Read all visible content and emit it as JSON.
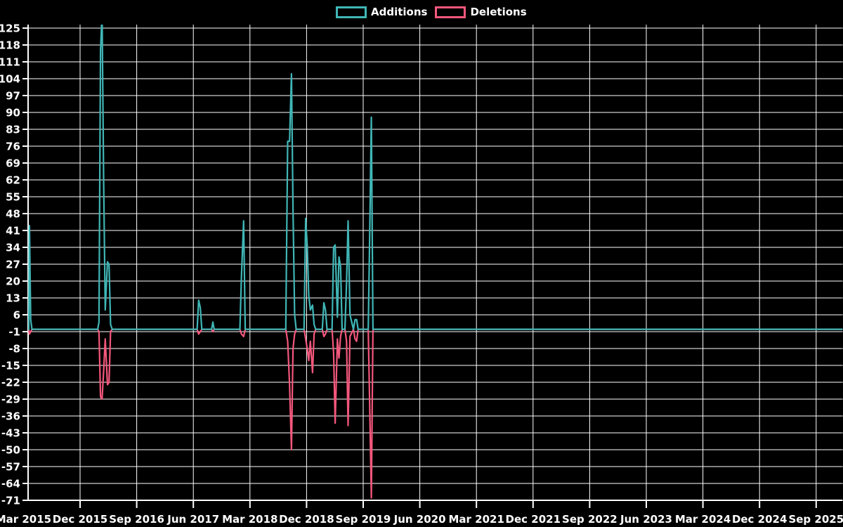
{
  "chart_data": {
    "type": "line",
    "title": "",
    "legend": [
      {
        "label": "Additions",
        "color": "#40b6b6"
      },
      {
        "label": "Deletions",
        "color": "#f4577c"
      }
    ],
    "colors": {
      "background": "#000000",
      "grid": "#ffffff",
      "text": "#ffffff",
      "additions": "#40b6b6",
      "deletions": "#f4577c"
    },
    "y_axis": {
      "min": -71,
      "max": 125,
      "step": 7,
      "ticks": [
        125,
        118,
        111,
        104,
        97,
        90,
        83,
        76,
        69,
        62,
        55,
        48,
        41,
        34,
        27,
        20,
        13,
        6,
        -1,
        -8,
        -15,
        -22,
        -29,
        -36,
        -43,
        -50,
        -57,
        -64,
        -71
      ]
    },
    "x_axis": {
      "labels": [
        "Mar 2015",
        "Dec 2015",
        "Sep 2016",
        "Jun 2017",
        "Mar 2018",
        "Dec 2018",
        "Sep 2019",
        "Jun 2020",
        "Mar 2021",
        "Dec 2021",
        "Sep 2022",
        "Jun 2023",
        "Mar 2024",
        "Dec 2024",
        "Sep 2025"
      ],
      "months_between_ticks": 9
    },
    "baseline": 0,
    "grid": true,
    "legend_position": "top-center",
    "series_events_comment": "t = months after Mar 2015; add = additions line value; del = deletions line value; flat at 0 between anchors",
    "series_events": [
      {
        "t": 0.74,
        "add": 0,
        "del": 0
      },
      {
        "t": 0.85,
        "add": 0,
        "del": 0
      },
      {
        "t": 0.95,
        "add": 43,
        "del": -2
      },
      {
        "t": 1.15,
        "add": 4,
        "del": -1
      },
      {
        "t": 1.35,
        "add": 0,
        "del": 0
      },
      {
        "t": 11.8,
        "add": 0,
        "del": 0
      },
      {
        "t": 12.0,
        "add": 3,
        "del": -1
      },
      {
        "t": 12.25,
        "add": 116,
        "del": -28
      },
      {
        "t": 12.5,
        "add": 131,
        "del": -29
      },
      {
        "t": 12.75,
        "add": 60,
        "del": -17
      },
      {
        "t": 13.0,
        "add": 8,
        "del": -4
      },
      {
        "t": 13.35,
        "add": 28,
        "del": -23
      },
      {
        "t": 13.6,
        "add": 27,
        "del": -22
      },
      {
        "t": 13.85,
        "add": 2,
        "del": -1
      },
      {
        "t": 14.1,
        "add": 0,
        "del": 0
      },
      {
        "t": 27.6,
        "add": 0,
        "del": 0
      },
      {
        "t": 27.85,
        "add": 12,
        "del": -2
      },
      {
        "t": 28.1,
        "add": 9,
        "del": -1
      },
      {
        "t": 28.35,
        "add": 0,
        "del": 0
      },
      {
        "t": 29.9,
        "add": 0,
        "del": 0
      },
      {
        "t": 30.1,
        "add": 3,
        "del": -1
      },
      {
        "t": 30.3,
        "add": 0,
        "del": 0
      },
      {
        "t": 34.4,
        "add": 0,
        "del": 0
      },
      {
        "t": 34.65,
        "add": 22,
        "del": -2
      },
      {
        "t": 35.0,
        "add": 45,
        "del": -3
      },
      {
        "t": 35.25,
        "add": 0,
        "del": 0
      },
      {
        "t": 41.7,
        "add": 0,
        "del": 0
      },
      {
        "t": 42.0,
        "add": 78,
        "del": -5
      },
      {
        "t": 42.3,
        "add": 78,
        "del": -23
      },
      {
        "t": 42.6,
        "add": 106,
        "del": -50
      },
      {
        "t": 42.85,
        "add": 50,
        "del": -8
      },
      {
        "t": 43.1,
        "add": 6,
        "del": -2
      },
      {
        "t": 43.35,
        "add": 0,
        "del": 0
      },
      {
        "t": 44.6,
        "add": 0,
        "del": 0
      },
      {
        "t": 44.85,
        "add": 46,
        "del": -4
      },
      {
        "t": 45.1,
        "add": 35,
        "del": -8
      },
      {
        "t": 45.35,
        "add": 14,
        "del": -13
      },
      {
        "t": 45.6,
        "add": 8,
        "del": -5
      },
      {
        "t": 45.95,
        "add": 10,
        "del": -18
      },
      {
        "t": 46.2,
        "add": 2,
        "del": -2
      },
      {
        "t": 46.45,
        "add": 0,
        "del": 0
      },
      {
        "t": 47.5,
        "add": 0,
        "del": 0
      },
      {
        "t": 47.75,
        "add": 11,
        "del": -3
      },
      {
        "t": 48.0,
        "add": 8,
        "del": -2
      },
      {
        "t": 48.25,
        "add": 0,
        "del": 0
      },
      {
        "t": 49.05,
        "add": 0,
        "del": 0
      },
      {
        "t": 49.3,
        "add": 34,
        "del": -10
      },
      {
        "t": 49.55,
        "add": 35,
        "del": -39
      },
      {
        "t": 49.9,
        "add": 5,
        "del": -4
      },
      {
        "t": 50.15,
        "add": 30,
        "del": -12
      },
      {
        "t": 50.4,
        "add": 26,
        "del": -3
      },
      {
        "t": 50.65,
        "add": 0,
        "del": 0
      },
      {
        "t": 51.1,
        "add": 0,
        "del": 0
      },
      {
        "t": 51.35,
        "add": 19,
        "del": -5
      },
      {
        "t": 51.6,
        "add": 45,
        "del": -40
      },
      {
        "t": 51.9,
        "add": 6,
        "del": -3
      },
      {
        "t": 52.45,
        "add": 0,
        "del": 0
      },
      {
        "t": 52.7,
        "add": 4,
        "del": -4
      },
      {
        "t": 52.95,
        "add": 4,
        "del": -5
      },
      {
        "t": 53.2,
        "add": 0,
        "del": 0
      },
      {
        "t": 54.8,
        "add": 0,
        "del": 0
      },
      {
        "t": 55.05,
        "add": 42,
        "del": -34
      },
      {
        "t": 55.3,
        "add": 88,
        "del": -70
      },
      {
        "t": 55.55,
        "add": 0,
        "del": 0
      },
      {
        "t": 130.2,
        "add": 0,
        "del": 0
      }
    ]
  }
}
